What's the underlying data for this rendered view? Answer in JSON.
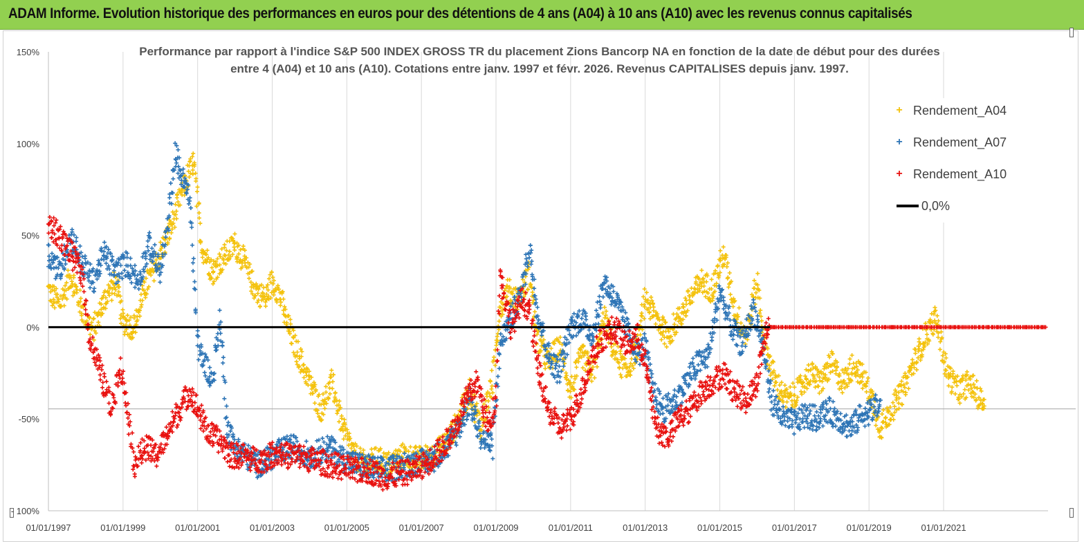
{
  "banner": {
    "title": "ADAM Informe. Evolution historique des performances en euros pour des détentions de 4 ans (A04) à 10 ans (A10) avec les revenus connus capitalisés"
  },
  "chart_data": {
    "type": "scatter",
    "title_line1": "Performance par rapport à l'indice S&P 500 INDEX GROSS TR  du placement Zions Bancorp NA en fonction de la date de début pour des durées",
    "title_line2": "entre 4 (A04) et 10 ans (A10).  Cotations entre janv. 1997 et févr. 2026. Revenus  CAPITALISES depuis janv. 1997.",
    "ylim": [
      -100,
      150
    ],
    "xlim": [
      1997.0,
      2023.8
    ],
    "y_ticks": [
      "150%",
      "100%",
      "50%",
      "0%",
      "-50%",
      "- 100%"
    ],
    "y_tick_values": [
      150,
      100,
      50,
      0,
      -50,
      -100
    ],
    "x_ticks": [
      "01/01/1997",
      "01/01/1999",
      "01/01/2001",
      "01/01/2003",
      "01/01/2005",
      "01/01/2007",
      "01/01/2009",
      "01/01/2011",
      "01/01/2013",
      "01/01/2015",
      "01/01/2017",
      "01/01/2019",
      "01/01/2021"
    ],
    "x_tick_values": [
      1997,
      1999,
      2001,
      2003,
      2005,
      2007,
      2009,
      2011,
      2013,
      2015,
      2017,
      2019,
      2021
    ],
    "reference_line": {
      "name": "0,0%",
      "value": 0,
      "color": "#000000"
    },
    "series": [
      {
        "name": "Rendement_A04",
        "color": "#f4c20d",
        "end": 2022.1,
        "points": [
          [
            1997.0,
            20
          ],
          [
            1997.3,
            12
          ],
          [
            1997.6,
            28
          ],
          [
            1997.9,
            10
          ],
          [
            1998.2,
            -2
          ],
          [
            1998.5,
            15
          ],
          [
            1998.8,
            25
          ],
          [
            1999.0,
            3
          ],
          [
            1999.3,
            0
          ],
          [
            1999.6,
            22
          ],
          [
            1999.9,
            35
          ],
          [
            2000.3,
            55
          ],
          [
            2000.6,
            75
          ],
          [
            2000.9,
            90
          ],
          [
            2001.1,
            45
          ],
          [
            2001.4,
            30
          ],
          [
            2001.7,
            38
          ],
          [
            2002.0,
            45
          ],
          [
            2002.2,
            38
          ],
          [
            2002.5,
            22
          ],
          [
            2002.8,
            15
          ],
          [
            2003.0,
            25
          ],
          [
            2003.2,
            18
          ],
          [
            2003.4,
            2
          ],
          [
            2003.7,
            -15
          ],
          [
            2004.0,
            -30
          ],
          [
            2004.3,
            -45
          ],
          [
            2004.6,
            -30
          ],
          [
            2004.9,
            -55
          ],
          [
            2005.2,
            -70
          ],
          [
            2005.5,
            -75
          ],
          [
            2005.8,
            -72
          ],
          [
            2006.1,
            -75
          ],
          [
            2006.5,
            -70
          ],
          [
            2006.9,
            -72
          ],
          [
            2007.3,
            -70
          ],
          [
            2007.7,
            -62
          ],
          [
            2008.0,
            -50
          ],
          [
            2008.3,
            -35
          ],
          [
            2008.6,
            -55
          ],
          [
            2008.9,
            -30
          ],
          [
            2009.1,
            10
          ],
          [
            2009.3,
            20
          ],
          [
            2009.6,
            15
          ],
          [
            2009.9,
            30
          ],
          [
            2010.1,
            -5
          ],
          [
            2010.4,
            -20
          ],
          [
            2010.7,
            -10
          ],
          [
            2011.0,
            -35
          ],
          [
            2011.3,
            -15
          ],
          [
            2011.6,
            -25
          ],
          [
            2011.9,
            5
          ],
          [
            2012.2,
            -15
          ],
          [
            2012.5,
            -25
          ],
          [
            2012.8,
            -10
          ],
          [
            2013.0,
            15
          ],
          [
            2013.3,
            5
          ],
          [
            2013.6,
            -5
          ],
          [
            2013.9,
            5
          ],
          [
            2014.2,
            15
          ],
          [
            2014.5,
            25
          ],
          [
            2014.8,
            20
          ],
          [
            2015.1,
            40
          ],
          [
            2015.4,
            10
          ],
          [
            2015.7,
            -5
          ],
          [
            2016.0,
            25
          ],
          [
            2016.2,
            -10
          ],
          [
            2016.5,
            -30
          ],
          [
            2016.8,
            -40
          ],
          [
            2017.1,
            -35
          ],
          [
            2017.4,
            -25
          ],
          [
            2017.7,
            -30
          ],
          [
            2018.0,
            -20
          ],
          [
            2018.3,
            -30
          ],
          [
            2018.6,
            -20
          ],
          [
            2018.9,
            -30
          ],
          [
            2019.1,
            -40
          ],
          [
            2019.3,
            -55
          ],
          [
            2019.6,
            -45
          ],
          [
            2019.9,
            -35
          ],
          [
            2020.2,
            -20
          ],
          [
            2020.5,
            -5
          ],
          [
            2020.8,
            5
          ],
          [
            2021.1,
            -25
          ],
          [
            2021.4,
            -35
          ],
          [
            2021.7,
            -30
          ],
          [
            2022.0,
            -40
          ]
        ]
      },
      {
        "name": "Rendement_A07",
        "color": "#2e75b6",
        "end": 2019.3,
        "points": [
          [
            1997.0,
            40
          ],
          [
            1997.3,
            30
          ],
          [
            1997.6,
            50
          ],
          [
            1997.9,
            35
          ],
          [
            1998.2,
            25
          ],
          [
            1998.5,
            40
          ],
          [
            1998.8,
            30
          ],
          [
            1999.1,
            35
          ],
          [
            1999.4,
            25
          ],
          [
            1999.7,
            45
          ],
          [
            2000.0,
            30
          ],
          [
            2000.2,
            55
          ],
          [
            2000.4,
            95
          ],
          [
            2000.6,
            80
          ],
          [
            2000.8,
            70
          ],
          [
            2001.0,
            -10
          ],
          [
            2001.2,
            -20
          ],
          [
            2001.4,
            -30
          ],
          [
            2001.6,
            5
          ],
          [
            2001.8,
            -55
          ],
          [
            2002.0,
            -65
          ],
          [
            2002.3,
            -70
          ],
          [
            2002.6,
            -75
          ],
          [
            2002.9,
            -72
          ],
          [
            2003.2,
            -68
          ],
          [
            2003.5,
            -65
          ],
          [
            2003.8,
            -68
          ],
          [
            2004.1,
            -70
          ],
          [
            2004.5,
            -65
          ],
          [
            2004.9,
            -72
          ],
          [
            2005.3,
            -75
          ],
          [
            2005.7,
            -77
          ],
          [
            2006.1,
            -78
          ],
          [
            2006.5,
            -75
          ],
          [
            2006.9,
            -74
          ],
          [
            2007.3,
            -72
          ],
          [
            2007.7,
            -65
          ],
          [
            2008.0,
            -55
          ],
          [
            2008.3,
            -40
          ],
          [
            2008.6,
            -60
          ],
          [
            2008.9,
            -65
          ],
          [
            2009.1,
            -10
          ],
          [
            2009.4,
            5
          ],
          [
            2009.7,
            20
          ],
          [
            2009.9,
            45
          ],
          [
            2010.1,
            10
          ],
          [
            2010.4,
            -15
          ],
          [
            2010.7,
            -25
          ],
          [
            2011.0,
            0
          ],
          [
            2011.3,
            5
          ],
          [
            2011.6,
            -5
          ],
          [
            2011.9,
            25
          ],
          [
            2012.2,
            15
          ],
          [
            2012.5,
            0
          ],
          [
            2012.8,
            -15
          ],
          [
            2013.0,
            -10
          ],
          [
            2013.2,
            -35
          ],
          [
            2013.5,
            -45
          ],
          [
            2013.8,
            -40
          ],
          [
            2014.1,
            -30
          ],
          [
            2014.4,
            -20
          ],
          [
            2014.7,
            -15
          ],
          [
            2015.0,
            20
          ],
          [
            2015.3,
            0
          ],
          [
            2015.6,
            -10
          ],
          [
            2015.9,
            10
          ],
          [
            2016.1,
            -5
          ],
          [
            2016.4,
            -40
          ],
          [
            2016.7,
            -50
          ],
          [
            2017.0,
            -52
          ],
          [
            2017.3,
            -48
          ],
          [
            2017.6,
            -50
          ],
          [
            2017.9,
            -45
          ],
          [
            2018.2,
            -50
          ],
          [
            2018.5,
            -55
          ],
          [
            2018.8,
            -48
          ],
          [
            2019.1,
            -45
          ],
          [
            2019.3,
            -42
          ]
        ]
      },
      {
        "name": "Rendement_A10",
        "color": "#e8110f",
        "end": 2023.75,
        "points": [
          [
            1997.0,
            55
          ],
          [
            1997.3,
            50
          ],
          [
            1997.6,
            40
          ],
          [
            1997.9,
            30
          ],
          [
            1998.1,
            -5
          ],
          [
            1998.4,
            -25
          ],
          [
            1998.7,
            -45
          ],
          [
            1998.9,
            -20
          ],
          [
            1999.1,
            -40
          ],
          [
            1999.3,
            -75
          ],
          [
            1999.6,
            -65
          ],
          [
            1999.9,
            -70
          ],
          [
            2000.2,
            -58
          ],
          [
            2000.5,
            -45
          ],
          [
            2000.8,
            -35
          ],
          [
            2001.0,
            -45
          ],
          [
            2001.3,
            -58
          ],
          [
            2001.6,
            -62
          ],
          [
            2001.9,
            -70
          ],
          [
            2002.2,
            -70
          ],
          [
            2002.5,
            -72
          ],
          [
            2002.8,
            -72
          ],
          [
            2003.1,
            -68
          ],
          [
            2003.4,
            -70
          ],
          [
            2003.7,
            -70
          ],
          [
            2004.0,
            -72
          ],
          [
            2004.4,
            -74
          ],
          [
            2004.8,
            -76
          ],
          [
            2005.2,
            -78
          ],
          [
            2005.6,
            -78
          ],
          [
            2006.0,
            -82
          ],
          [
            2006.4,
            -80
          ],
          [
            2006.8,
            -78
          ],
          [
            2007.2,
            -73
          ],
          [
            2007.6,
            -65
          ],
          [
            2007.9,
            -55
          ],
          [
            2008.2,
            -40
          ],
          [
            2008.5,
            -30
          ],
          [
            2008.8,
            -55
          ],
          [
            2009.0,
            -40
          ],
          [
            2009.1,
            30
          ],
          [
            2009.4,
            0
          ],
          [
            2009.7,
            15
          ],
          [
            2009.9,
            10
          ],
          [
            2010.1,
            -20
          ],
          [
            2010.4,
            -45
          ],
          [
            2010.7,
            -55
          ],
          [
            2011.0,
            -50
          ],
          [
            2011.3,
            -35
          ],
          [
            2011.6,
            -15
          ],
          [
            2011.9,
            -5
          ],
          [
            2012.2,
            0
          ],
          [
            2012.5,
            -10
          ],
          [
            2012.8,
            -5
          ],
          [
            2013.0,
            -20
          ],
          [
            2013.3,
            -55
          ],
          [
            2013.6,
            -60
          ],
          [
            2013.9,
            -50
          ],
          [
            2014.2,
            -45
          ],
          [
            2014.5,
            -35
          ],
          [
            2014.8,
            -30
          ],
          [
            2015.1,
            -25
          ],
          [
            2015.4,
            -35
          ],
          [
            2015.7,
            -40
          ],
          [
            2016.0,
            -30
          ],
          [
            2016.2,
            -5
          ],
          [
            2016.3,
            0
          ],
          [
            2023.75,
            0
          ]
        ]
      }
    ],
    "legend": {
      "position": "top-right",
      "entries": [
        "Rendement_A04",
        "Rendement_A07",
        "Rendement_A10",
        "0,0%"
      ]
    }
  }
}
